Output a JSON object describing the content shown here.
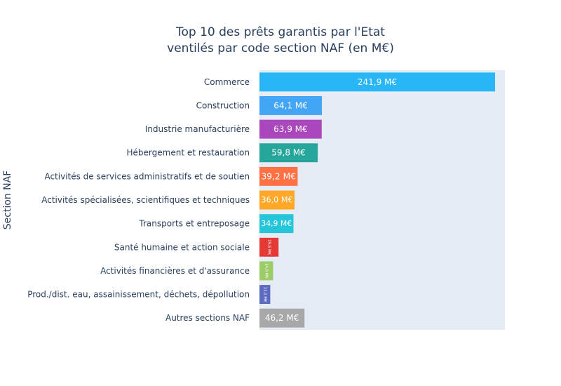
{
  "chart_data": {
    "type": "bar",
    "orientation": "horizontal",
    "title": "Top 10 des prêts garantis par l'Etat",
    "subtitle": "ventilés par code section NAF (en M€)",
    "xlabel": "",
    "ylabel": "Section NAF",
    "xlim": [
      0,
      252
    ],
    "grid": false,
    "legend": "none",
    "categories": [
      "Commerce",
      "Construction",
      "Industrie manufacturière",
      "Hébergement et restauration",
      "Activités de services administratifs et de soutien",
      "Activités spécialisées, scientifiques et techniques",
      "Transports et entreposage",
      "Santé humaine et action sociale",
      "Activités financières et d'assurance",
      "Prod./dist. eau, assainissement, déchets, dépollution",
      "Autres sections NAF"
    ],
    "values": [
      241.9,
      64.1,
      63.9,
      59.8,
      39.2,
      36.0,
      34.9,
      19.6,
      14.0,
      11.1,
      46.2
    ],
    "labels": [
      "241,9 M€",
      "64,1 M€",
      "63,9 M€",
      "59,8 M€",
      "39,2 M€",
      "36,0 M€",
      "34,9 M€",
      "19,6 M€",
      "14,0 M€",
      "11,1 M€",
      "46,2 M€"
    ],
    "colors": [
      "#29b6f6",
      "#42a5f5",
      "#ab47bc",
      "#26a69a",
      "#ff7043",
      "#ffa726",
      "#26c6da",
      "#e53935",
      "#9ccc65",
      "#5c6bc0",
      "#a8a8a8"
    ],
    "plot_background": "#e5ecf6"
  }
}
